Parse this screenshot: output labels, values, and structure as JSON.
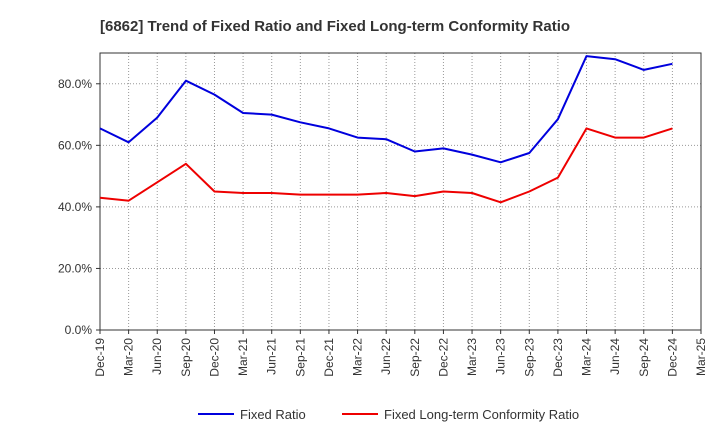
{
  "chart_data": {
    "type": "line",
    "title": "[6862]  Trend of Fixed Ratio and Fixed Long-term Conformity Ratio",
    "xlabel": "",
    "ylabel": "",
    "ylim": [
      0,
      90
    ],
    "y_ticks": [
      "0.0%",
      "20.0%",
      "40.0%",
      "60.0%",
      "80.0%"
    ],
    "y_tick_values": [
      0,
      20,
      40,
      60,
      80
    ],
    "categories": [
      "Dec-19",
      "Mar-20",
      "Jun-20",
      "Sep-20",
      "Dec-20",
      "Mar-21",
      "Jun-21",
      "Sep-21",
      "Dec-21",
      "Mar-22",
      "Jun-22",
      "Sep-22",
      "Dec-22",
      "Mar-23",
      "Jun-23",
      "Sep-23",
      "Dec-23",
      "Mar-24",
      "Jun-24",
      "Sep-24",
      "Dec-24",
      "Mar-25"
    ],
    "grid": true,
    "legend_position": "bottom",
    "series": [
      {
        "name": "Fixed Ratio",
        "color": "#0000dd",
        "values": [
          65.5,
          61.0,
          69.0,
          81.0,
          76.5,
          70.5,
          70.0,
          67.5,
          65.5,
          62.5,
          62.0,
          58.0,
          59.0,
          57.0,
          54.5,
          57.5,
          68.5,
          89.0,
          88.0,
          84.5,
          86.5,
          null
        ]
      },
      {
        "name": "Fixed Long-term Conformity Ratio",
        "color": "#ee0000",
        "values": [
          43.0,
          42.0,
          48.0,
          54.0,
          45.0,
          44.5,
          44.5,
          44.0,
          44.0,
          44.0,
          44.5,
          43.5,
          45.0,
          44.5,
          41.5,
          45.0,
          49.5,
          65.5,
          62.5,
          62.5,
          65.5,
          null
        ]
      }
    ]
  }
}
